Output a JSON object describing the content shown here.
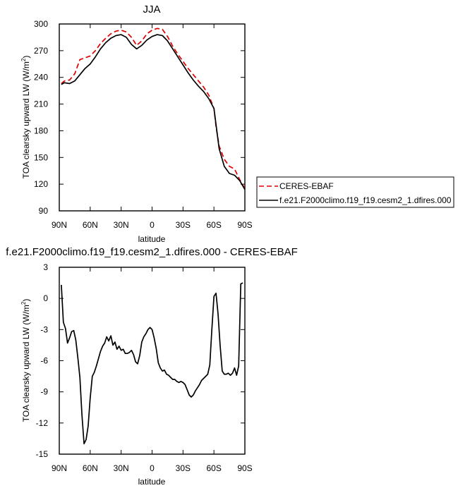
{
  "chart_data": [
    {
      "type": "line",
      "title": "JJA",
      "xlabel": "latitude",
      "ylabel": "TOA clearsky upward LW (W/m",
      "ylabel_sup": "2",
      "ylabel_end": ")",
      "xlim": [
        90,
        -90
      ],
      "ylim": [
        90,
        300
      ],
      "xticks": [
        90,
        60,
        30,
        0,
        -30,
        -60,
        -90
      ],
      "xtick_labels": [
        "90N",
        "60N",
        "30N",
        "0",
        "30S",
        "60S",
        "90S"
      ],
      "yticks": [
        90,
        120,
        150,
        180,
        210,
        240,
        270,
        300
      ],
      "ytick_labels": [
        "90",
        "120",
        "150",
        "180",
        "210",
        "240",
        "270",
        "300"
      ],
      "legend": "right",
      "series": [
        {
          "name": "CERES-EBAF",
          "color": "#dd0000",
          "style": "dashed",
          "x": [
            88,
            85,
            80,
            75,
            70,
            65,
            60,
            55,
            50,
            45,
            40,
            35,
            30,
            25,
            20,
            15,
            10,
            5,
            0,
            -5,
            -10,
            -15,
            -20,
            -25,
            -30,
            -35,
            -40,
            -45,
            -50,
            -55,
            -60,
            -62,
            -65,
            -70,
            -75,
            -80,
            -85,
            -90
          ],
          "y": [
            233,
            236,
            237,
            244,
            260,
            262,
            264,
            270,
            278,
            284,
            289,
            292,
            293,
            291,
            285,
            276,
            281,
            289,
            293,
            295,
            294,
            286,
            275,
            266,
            258,
            250,
            243,
            236,
            229,
            220,
            205,
            185,
            163,
            148,
            140,
            137,
            125,
            115
          ]
        },
        {
          "name": "f.e21.F2000climo.f19_f19.cesm2_1.dfires.000",
          "color": "#000000",
          "style": "solid",
          "x": [
            88,
            85,
            80,
            75,
            70,
            65,
            60,
            55,
            50,
            45,
            40,
            35,
            30,
            25,
            20,
            15,
            10,
            5,
            0,
            -5,
            -10,
            -15,
            -20,
            -25,
            -30,
            -35,
            -40,
            -45,
            -50,
            -55,
            -60,
            -62,
            -65,
            -70,
            -75,
            -80,
            -85,
            -90
          ],
          "y": [
            232,
            234,
            233,
            236,
            243,
            250,
            255,
            263,
            272,
            279,
            284,
            287,
            288,
            285,
            277,
            272,
            276,
            282,
            286,
            288,
            287,
            281,
            272,
            263,
            254,
            245,
            237,
            230,
            224,
            216,
            205,
            187,
            160,
            140,
            132,
            130,
            124,
            114
          ]
        }
      ]
    },
    {
      "type": "line",
      "title": "f.e21.F2000climo.f19_f19.cesm2_1.dfires.000 - CERES-EBAF",
      "xlabel": "latitude",
      "ylabel": "TOA clearsky upward LW (W/m",
      "ylabel_sup": "2",
      "ylabel_end": ")",
      "xlim": [
        90,
        -90
      ],
      "ylim": [
        -15,
        3
      ],
      "xticks": [
        90,
        60,
        30,
        0,
        -30,
        -60,
        -90
      ],
      "xtick_labels": [
        "90N",
        "60N",
        "30N",
        "0",
        "30S",
        "60S",
        "90S"
      ],
      "yticks": [
        -15,
        -12,
        -9,
        -6,
        -3,
        0,
        3
      ],
      "ytick_labels": [
        "-15",
        "-12",
        "-9",
        "-6",
        "-3",
        "0",
        "3"
      ],
      "series": [
        {
          "color": "#000000",
          "style": "solid",
          "x": [
            88,
            86,
            84,
            82,
            80,
            78,
            76,
            74,
            72,
            70,
            68,
            66,
            64,
            62,
            60,
            58,
            56,
            54,
            52,
            50,
            48,
            46,
            44,
            42,
            40,
            38,
            36,
            34,
            32,
            30,
            28,
            26,
            24,
            22,
            20,
            18,
            16,
            14,
            12,
            10,
            8,
            6,
            4,
            2,
            0,
            -2,
            -4,
            -6,
            -8,
            -10,
            -12,
            -14,
            -16,
            -18,
            -20,
            -22,
            -24,
            -26,
            -28,
            -30,
            -32,
            -34,
            -36,
            -38,
            -40,
            -42,
            -44,
            -46,
            -48,
            -50,
            -52,
            -54,
            -56,
            -58,
            -60,
            -62,
            -64,
            -66,
            -68,
            -70,
            -72,
            -74,
            -76,
            -78,
            -80,
            -82,
            -84,
            -86,
            -88
          ],
          "y": [
            1.3,
            -2.3,
            -2.9,
            -4.3,
            -3.8,
            -3.2,
            -3.1,
            -4.0,
            -5.7,
            -7.6,
            -11.2,
            -14.0,
            -13.6,
            -12.3,
            -9.6,
            -7.5,
            -7.1,
            -6.5,
            -5.8,
            -5.1,
            -4.6,
            -4.3,
            -3.7,
            -4.1,
            -3.6,
            -4.5,
            -4.2,
            -4.9,
            -4.6,
            -5.0,
            -4.9,
            -5.3,
            -5.3,
            -5.2,
            -5.0,
            -5.4,
            -6.1,
            -6.3,
            -5.5,
            -4.2,
            -3.7,
            -3.4,
            -3.0,
            -2.8,
            -3.0,
            -3.8,
            -4.8,
            -6.2,
            -6.7,
            -7.0,
            -6.9,
            -7.3,
            -7.4,
            -7.6,
            -7.8,
            -7.8,
            -8.0,
            -8.1,
            -8.0,
            -8.1,
            -8.3,
            -8.8,
            -9.3,
            -9.5,
            -9.3,
            -8.9,
            -8.6,
            -8.3,
            -7.9,
            -7.7,
            -7.5,
            -7.3,
            -6.4,
            -3.0,
            0.2,
            0.5,
            -1.5,
            -4.5,
            -7.0,
            -7.3,
            -7.3,
            -7.2,
            -7.4,
            -7.2,
            -6.7,
            -7.4,
            -6.5,
            1.4,
            1.5
          ]
        }
      ]
    }
  ]
}
